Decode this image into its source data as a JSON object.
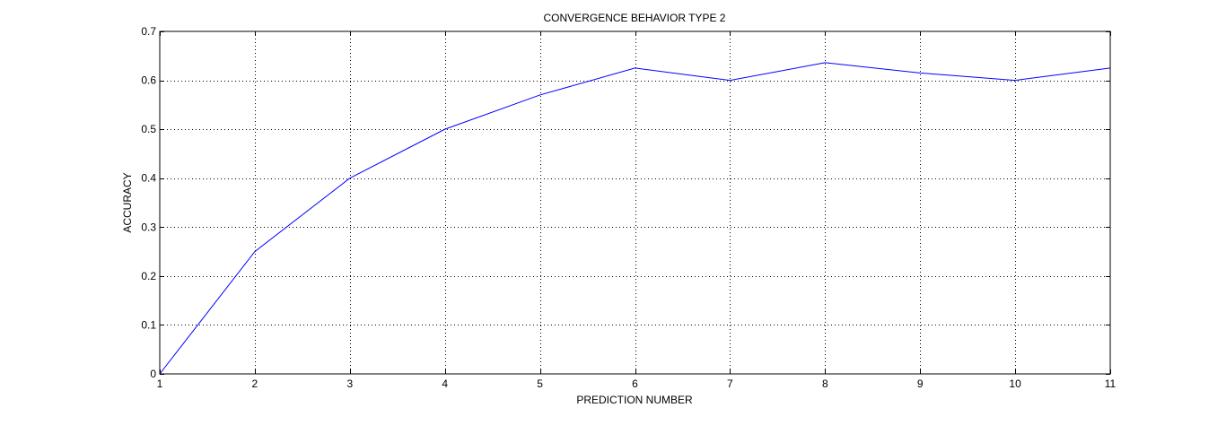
{
  "chart_data": {
    "type": "line",
    "title": "CONVERGENCE BEHAVIOR TYPE 2",
    "xlabel": "PREDICTION NUMBER",
    "ylabel": "ACCURACY",
    "xlim": [
      1,
      11
    ],
    "ylim": [
      0,
      0.7
    ],
    "x_ticks": [
      1,
      2,
      3,
      4,
      5,
      6,
      7,
      8,
      9,
      10,
      11
    ],
    "y_ticks": [
      0,
      0.1,
      0.2,
      0.3,
      0.4,
      0.5,
      0.6,
      0.7
    ],
    "grid": true,
    "grid_style": "dotted",
    "series": [
      {
        "color": "#0000ff",
        "x": [
          1,
          2,
          3,
          4,
          5,
          6,
          7,
          8,
          9,
          10,
          11
        ],
        "y": [
          0,
          0.25,
          0.4,
          0.5,
          0.57,
          0.625,
          0.6,
          0.636,
          0.615,
          0.6,
          0.625
        ]
      }
    ]
  }
}
